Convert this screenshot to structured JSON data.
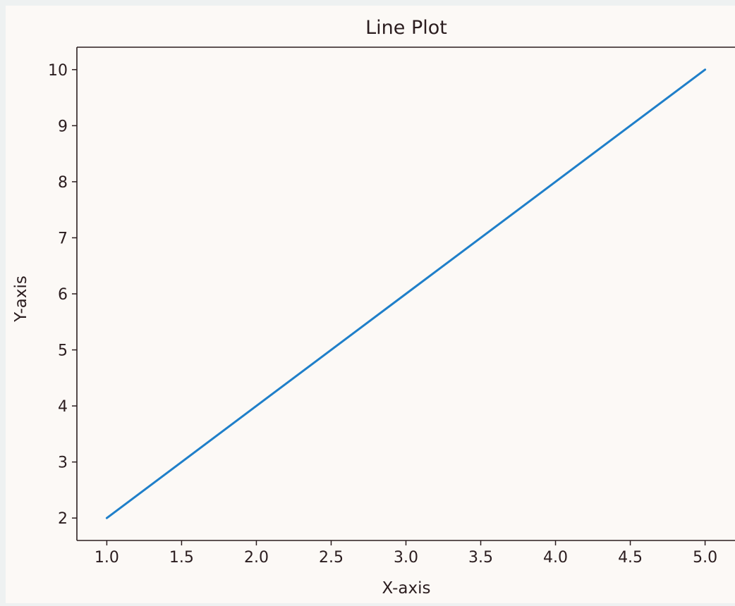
{
  "chart_data": {
    "type": "line",
    "title": "Line Plot",
    "xlabel": "X-axis",
    "ylabel": "Y-axis",
    "x": [
      1,
      2,
      3,
      4,
      5
    ],
    "series": [
      {
        "values": [
          2,
          4,
          6,
          8,
          10
        ]
      }
    ],
    "xlim": [
      0.8,
      5.2
    ],
    "ylim": [
      1.6,
      10.4
    ],
    "xticks": [
      1.0,
      1.5,
      2.0,
      2.5,
      3.0,
      3.5,
      4.0,
      4.5,
      5.0
    ],
    "xtick_labels": [
      "1.0",
      "1.5",
      "2.0",
      "2.5",
      "3.0",
      "3.5",
      "4.0",
      "4.5",
      "5.0"
    ],
    "yticks": [
      2,
      3,
      4,
      5,
      6,
      7,
      8,
      9,
      10
    ],
    "ytick_labels": [
      "2",
      "3",
      "4",
      "5",
      "6",
      "7",
      "8",
      "9",
      "10"
    ],
    "grid": false,
    "legend": false,
    "colors": {
      "line": "#1f7fc9",
      "plot_background": "#fcf9f6",
      "axes": "#2b1d1f",
      "text": "#2b1d1f"
    }
  }
}
